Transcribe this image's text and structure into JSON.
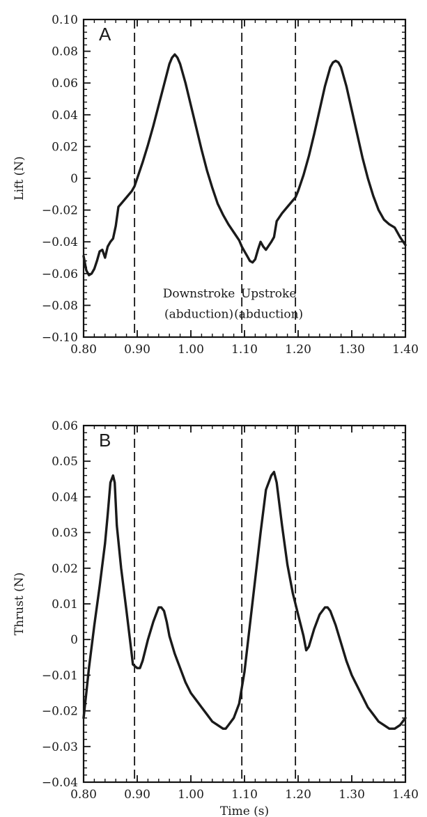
{
  "chart_data": [
    {
      "type": "line",
      "panel_label": "A",
      "xlabel": "",
      "ylabel": "Lift (N)",
      "xlim": [
        0.8,
        1.4
      ],
      "ylim": [
        -0.1,
        0.1
      ],
      "xticks": [
        0.8,
        0.9,
        1.0,
        1.1,
        1.2,
        1.3,
        1.4
      ],
      "xtick_labels": [
        "0.80",
        "0.90",
        "1.00",
        "1.10",
        "1.20",
        "1.30",
        "1.40"
      ],
      "yticks": [
        0.1,
        0.08,
        0.06,
        0.04,
        0.02,
        0,
        -0.02,
        -0.04,
        -0.06,
        -0.08,
        -0.1
      ],
      "ytick_labels": [
        "0.10",
        "0.08",
        "0.06",
        "0.04",
        "0.02",
        "0",
        "−0.02",
        "−0.04",
        "−0.06",
        "−0.08",
        "−0.10"
      ],
      "vlines": [
        0.895,
        1.095,
        1.195
      ],
      "annotations": [
        {
          "text": "Downstroke",
          "x": 1.015,
          "y": -0.075
        },
        {
          "text": "(abduction)",
          "x": 1.015,
          "y": -0.088
        },
        {
          "text": "Upstroke",
          "x": 1.145,
          "y": -0.075
        },
        {
          "text": "(abduction)",
          "x": 1.145,
          "y": -0.088
        }
      ],
      "series": [
        {
          "x": [
            0.8,
            0.805,
            0.81,
            0.815,
            0.82,
            0.825,
            0.83,
            0.835,
            0.84,
            0.845,
            0.85,
            0.855,
            0.86,
            0.865,
            0.87,
            0.88,
            0.89,
            0.895,
            0.9,
            0.91,
            0.92,
            0.93,
            0.94,
            0.95,
            0.96,
            0.965,
            0.97,
            0.975,
            0.98,
            0.99,
            1.0,
            1.01,
            1.02,
            1.03,
            1.04,
            1.05,
            1.06,
            1.07,
            1.08,
            1.09,
            1.095,
            1.1,
            1.105,
            1.11,
            1.115,
            1.12,
            1.125,
            1.13,
            1.135,
            1.14,
            1.15,
            1.155,
            1.16,
            1.17,
            1.18,
            1.19,
            1.195,
            1.2,
            1.21,
            1.22,
            1.23,
            1.24,
            1.25,
            1.26,
            1.265,
            1.27,
            1.275,
            1.28,
            1.29,
            1.3,
            1.31,
            1.32,
            1.33,
            1.34,
            1.35,
            1.36,
            1.37,
            1.38,
            1.39,
            1.4
          ],
          "y": [
            -0.049,
            -0.058,
            -0.061,
            -0.06,
            -0.057,
            -0.052,
            -0.046,
            -0.045,
            -0.05,
            -0.043,
            -0.04,
            -0.038,
            -0.03,
            -0.018,
            -0.016,
            -0.012,
            -0.008,
            -0.005,
            0.0,
            0.01,
            0.021,
            0.033,
            0.046,
            0.059,
            0.072,
            0.076,
            0.078,
            0.076,
            0.072,
            0.06,
            0.046,
            0.032,
            0.018,
            0.005,
            -0.006,
            -0.016,
            -0.023,
            -0.029,
            -0.034,
            -0.039,
            -0.043,
            -0.046,
            -0.049,
            -0.052,
            -0.053,
            -0.051,
            -0.045,
            -0.04,
            -0.043,
            -0.045,
            -0.04,
            -0.037,
            -0.027,
            -0.022,
            -0.018,
            -0.014,
            -0.012,
            -0.008,
            0.002,
            0.014,
            0.028,
            0.043,
            0.058,
            0.07,
            0.073,
            0.074,
            0.073,
            0.07,
            0.058,
            0.043,
            0.028,
            0.013,
            0.0,
            -0.011,
            -0.02,
            -0.026,
            -0.029,
            -0.031,
            -0.037,
            -0.042
          ]
        }
      ]
    },
    {
      "type": "line",
      "panel_label": "B",
      "xlabel": "Time (s)",
      "ylabel": "Thrust (N)",
      "xlim": [
        0.8,
        1.4
      ],
      "ylim": [
        -0.04,
        0.06
      ],
      "xticks": [
        0.8,
        0.9,
        1.0,
        1.1,
        1.2,
        1.3,
        1.4
      ],
      "xtick_labels": [
        "0.80",
        "0.90",
        "1.00",
        "1.10",
        "1.20",
        "1.30",
        "1.40"
      ],
      "yticks": [
        0.06,
        0.05,
        0.04,
        0.03,
        0.02,
        0.01,
        0,
        -0.01,
        -0.02,
        -0.03,
        -0.04
      ],
      "ytick_labels": [
        "0.06",
        "0.05",
        "0.04",
        "0.03",
        "0.02",
        "0.01",
        "0",
        "−0.01",
        "−0.02",
        "−0.03",
        "−0.04"
      ],
      "vlines": [
        0.895,
        1.095,
        1.195
      ],
      "annotations": [],
      "series": [
        {
          "x": [
            0.8,
            0.805,
            0.81,
            0.82,
            0.83,
            0.84,
            0.845,
            0.85,
            0.855,
            0.858,
            0.862,
            0.87,
            0.88,
            0.888,
            0.892,
            0.9,
            0.905,
            0.91,
            0.92,
            0.93,
            0.94,
            0.945,
            0.95,
            0.955,
            0.96,
            0.97,
            0.98,
            0.99,
            1.0,
            1.01,
            1.02,
            1.03,
            1.04,
            1.05,
            1.06,
            1.065,
            1.07,
            1.08,
            1.09,
            1.1,
            1.11,
            1.12,
            1.13,
            1.14,
            1.15,
            1.155,
            1.16,
            1.17,
            1.18,
            1.19,
            1.2,
            1.21,
            1.215,
            1.22,
            1.23,
            1.24,
            1.25,
            1.255,
            1.26,
            1.27,
            1.28,
            1.29,
            1.3,
            1.31,
            1.32,
            1.33,
            1.34,
            1.35,
            1.36,
            1.37,
            1.38,
            1.39,
            1.4
          ],
          "y": [
            -0.022,
            -0.015,
            -0.008,
            0.004,
            0.015,
            0.027,
            0.035,
            0.044,
            0.046,
            0.044,
            0.032,
            0.02,
            0.008,
            -0.002,
            -0.007,
            -0.008,
            -0.008,
            -0.006,
            0.0,
            0.005,
            0.009,
            0.009,
            0.008,
            0.005,
            0.001,
            -0.004,
            -0.008,
            -0.012,
            -0.015,
            -0.017,
            -0.019,
            -0.021,
            -0.023,
            -0.024,
            -0.025,
            -0.025,
            -0.024,
            -0.022,
            -0.018,
            -0.009,
            0.004,
            0.017,
            0.03,
            0.042,
            0.046,
            0.047,
            0.044,
            0.032,
            0.021,
            0.013,
            0.007,
            0.001,
            -0.003,
            -0.002,
            0.003,
            0.007,
            0.009,
            0.009,
            0.008,
            0.004,
            -0.001,
            -0.006,
            -0.01,
            -0.013,
            -0.016,
            -0.019,
            -0.021,
            -0.023,
            -0.024,
            -0.025,
            -0.025,
            -0.024,
            -0.022
          ]
        }
      ]
    }
  ]
}
